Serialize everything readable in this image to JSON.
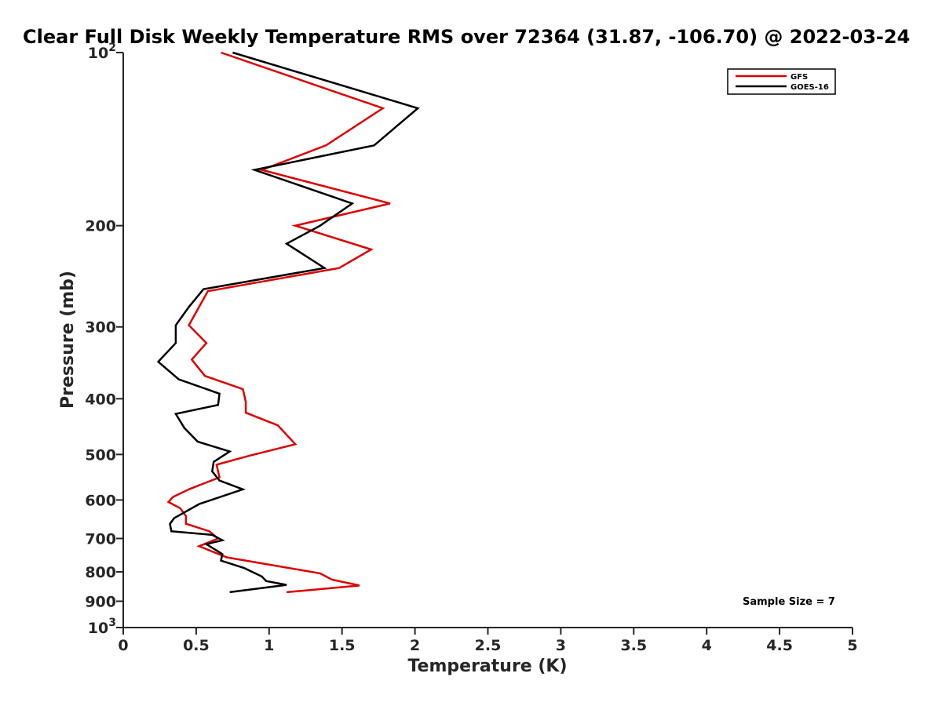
{
  "chart_data": {
    "type": "line",
    "title": "Clear Full Disk Weekly Temperature RMS over 72364 (31.87, -106.70) @ 2022-03-24",
    "xlabel": "Temperature (K)",
    "ylabel": "Pressure (mb)",
    "xlim": [
      0,
      5
    ],
    "ylim": [
      100,
      1000
    ],
    "y_scale": "log",
    "y_reversed": true,
    "grid": false,
    "legend_position": "top-right",
    "x_ticks": [
      "0",
      "0.5",
      "1",
      "1.5",
      "2",
      "2.5",
      "3",
      "3.5",
      "4",
      "4.5",
      "5"
    ],
    "y_ticks": [
      {
        "value": 100,
        "base": "10",
        "exp": "2"
      },
      {
        "value": 200,
        "label": "200"
      },
      {
        "value": 300,
        "label": "300"
      },
      {
        "value": 400,
        "label": "400"
      },
      {
        "value": 500,
        "label": "500"
      },
      {
        "value": 600,
        "label": "600"
      },
      {
        "value": 700,
        "label": "700"
      },
      {
        "value": 800,
        "label": "800"
      },
      {
        "value": 900,
        "label": "900"
      },
      {
        "value": 1000,
        "base": "10",
        "exp": "3"
      }
    ],
    "annotation": "Sample Size = 7",
    "series": [
      {
        "name": "GFS",
        "color": "#dd0000",
        "points": [
          {
            "x": 0.67,
            "p": 100
          },
          {
            "x": 1.78,
            "p": 125
          },
          {
            "x": 1.39,
            "p": 145
          },
          {
            "x": 0.95,
            "p": 160
          },
          {
            "x": 1.83,
            "p": 183
          },
          {
            "x": 1.18,
            "p": 200
          },
          {
            "x": 1.7,
            "p": 220
          },
          {
            "x": 1.48,
            "p": 237
          },
          {
            "x": 0.58,
            "p": 260
          },
          {
            "x": 0.45,
            "p": 298
          },
          {
            "x": 0.57,
            "p": 320
          },
          {
            "x": 0.47,
            "p": 342
          },
          {
            "x": 0.56,
            "p": 365
          },
          {
            "x": 0.82,
            "p": 385
          },
          {
            "x": 0.84,
            "p": 405
          },
          {
            "x": 0.84,
            "p": 423
          },
          {
            "x": 1.06,
            "p": 445
          },
          {
            "x": 1.18,
            "p": 480
          },
          {
            "x": 0.86,
            "p": 503
          },
          {
            "x": 0.64,
            "p": 521
          },
          {
            "x": 0.66,
            "p": 548
          },
          {
            "x": 0.45,
            "p": 575
          },
          {
            "x": 0.34,
            "p": 593
          },
          {
            "x": 0.31,
            "p": 605
          },
          {
            "x": 0.39,
            "p": 620
          },
          {
            "x": 0.43,
            "p": 640
          },
          {
            "x": 0.43,
            "p": 660
          },
          {
            "x": 0.59,
            "p": 680
          },
          {
            "x": 0.65,
            "p": 700
          },
          {
            "x": 0.52,
            "p": 722
          },
          {
            "x": 0.71,
            "p": 755
          },
          {
            "x": 1.35,
            "p": 805
          },
          {
            "x": 1.43,
            "p": 825
          },
          {
            "x": 1.62,
            "p": 845
          },
          {
            "x": 1.12,
            "p": 868
          }
        ]
      },
      {
        "name": "GOES-16",
        "color": "#000000",
        "points": [
          {
            "x": 0.75,
            "p": 100
          },
          {
            "x": 2.02,
            "p": 125
          },
          {
            "x": 1.72,
            "p": 145
          },
          {
            "x": 0.9,
            "p": 160
          },
          {
            "x": 1.57,
            "p": 183
          },
          {
            "x": 1.35,
            "p": 200
          },
          {
            "x": 1.12,
            "p": 215
          },
          {
            "x": 1.38,
            "p": 237
          },
          {
            "x": 0.55,
            "p": 258
          },
          {
            "x": 0.45,
            "p": 277
          },
          {
            "x": 0.36,
            "p": 298
          },
          {
            "x": 0.36,
            "p": 320
          },
          {
            "x": 0.24,
            "p": 345
          },
          {
            "x": 0.38,
            "p": 370
          },
          {
            "x": 0.66,
            "p": 392
          },
          {
            "x": 0.65,
            "p": 410
          },
          {
            "x": 0.36,
            "p": 425
          },
          {
            "x": 0.42,
            "p": 450
          },
          {
            "x": 0.51,
            "p": 475
          },
          {
            "x": 0.73,
            "p": 494
          },
          {
            "x": 0.62,
            "p": 515
          },
          {
            "x": 0.61,
            "p": 535
          },
          {
            "x": 0.66,
            "p": 555
          },
          {
            "x": 0.82,
            "p": 575
          },
          {
            "x": 0.52,
            "p": 610
          },
          {
            "x": 0.35,
            "p": 645
          },
          {
            "x": 0.32,
            "p": 660
          },
          {
            "x": 0.33,
            "p": 680
          },
          {
            "x": 0.61,
            "p": 690
          },
          {
            "x": 0.68,
            "p": 705
          },
          {
            "x": 0.57,
            "p": 716
          },
          {
            "x": 0.68,
            "p": 745
          },
          {
            "x": 0.67,
            "p": 765
          },
          {
            "x": 0.83,
            "p": 788
          },
          {
            "x": 0.95,
            "p": 815
          },
          {
            "x": 0.98,
            "p": 830
          },
          {
            "x": 1.12,
            "p": 843
          },
          {
            "x": 0.73,
            "p": 868
          }
        ]
      }
    ]
  }
}
